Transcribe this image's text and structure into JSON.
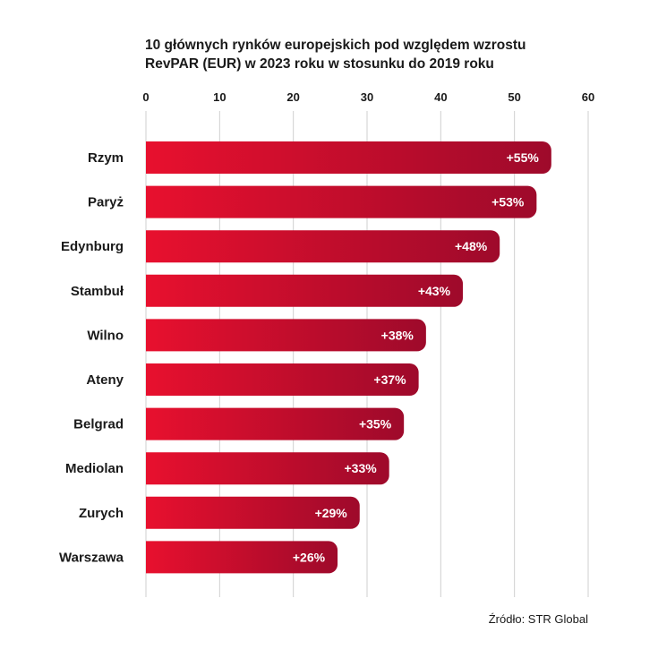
{
  "chart_data": {
    "type": "bar",
    "orientation": "horizontal",
    "title_lines": [
      "10 głównych rynków europejskich pod względem wzrostu",
      "RevPAR (EUR) w 2023 roku w stosunku do 2019 roku"
    ],
    "categories": [
      "Rzym",
      "Paryż",
      "Edynburg",
      "Stambuł",
      "Wilno",
      "Ateny",
      "Belgrad",
      "Mediolan",
      "Zurych",
      "Warszawa"
    ],
    "values": [
      55,
      53,
      48,
      43,
      38,
      37,
      35,
      33,
      29,
      26
    ],
    "data_labels": [
      "+55%",
      "+53%",
      "+48%",
      "+43%",
      "+38%",
      "+37%",
      "+35%",
      "+33%",
      "+29%",
      "+26%"
    ],
    "x_ticks": [
      0,
      10,
      20,
      30,
      40,
      50,
      60
    ],
    "xlim": [
      0,
      60
    ],
    "x_axis_position": "top",
    "grid": true,
    "colors": {
      "bar_start": "#e8102e",
      "bar_end": "#9e0a2b",
      "grid": "#cfcfcf",
      "text": "#1a1a1a",
      "label": "#ffffff"
    }
  },
  "source": "Źródło: STR Global"
}
